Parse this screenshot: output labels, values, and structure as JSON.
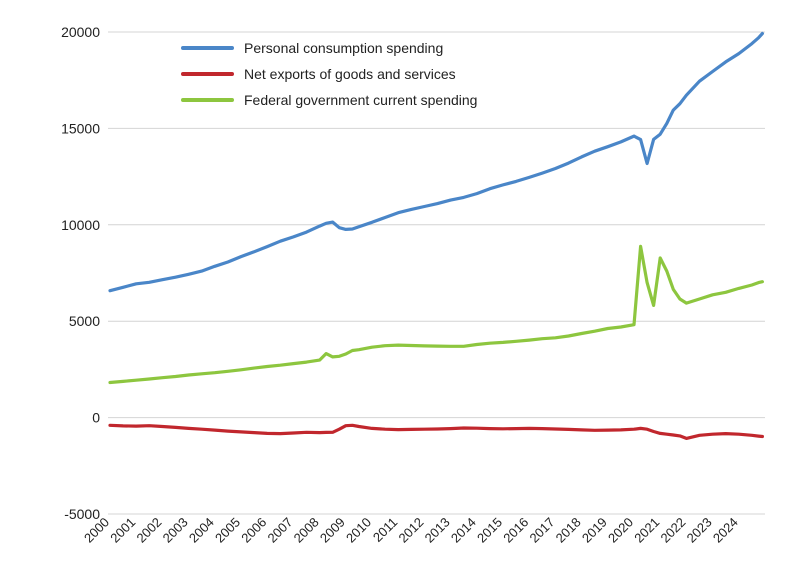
{
  "chart_data": {
    "type": "line",
    "title": "",
    "xlabel": "",
    "ylabel": "",
    "ylim": [
      -5000,
      20000
    ],
    "yticks": [
      "20000",
      "15000",
      "10000",
      "5000",
      "0",
      "-5000"
    ],
    "xticks": [
      "2000",
      "2001",
      "2002",
      "2003",
      "2004",
      "2005",
      "2006",
      "2007",
      "2008",
      "2009",
      "2010",
      "2011",
      "2012",
      "2013",
      "2014",
      "2015",
      "2016",
      "2017",
      "2018",
      "2019",
      "2020",
      "2021",
      "2022",
      "2023",
      "2024"
    ],
    "grid": true,
    "legend_position": "top-left",
    "series": [
      {
        "name": "Personal consumption spending",
        "color": "#4a86c8",
        "points": [
          [
            2000.0,
            6580
          ],
          [
            2000.5,
            6760
          ],
          [
            2001.0,
            6940
          ],
          [
            2001.5,
            7020
          ],
          [
            2002.0,
            7150
          ],
          [
            2002.5,
            7280
          ],
          [
            2003.0,
            7430
          ],
          [
            2003.5,
            7600
          ],
          [
            2004.0,
            7850
          ],
          [
            2004.5,
            8070
          ],
          [
            2005.0,
            8350
          ],
          [
            2005.5,
            8600
          ],
          [
            2006.0,
            8870
          ],
          [
            2006.5,
            9150
          ],
          [
            2007.0,
            9370
          ],
          [
            2007.5,
            9620
          ],
          [
            2008.0,
            9930
          ],
          [
            2008.25,
            10080
          ],
          [
            2008.5,
            10140
          ],
          [
            2008.75,
            9850
          ],
          [
            2009.0,
            9760
          ],
          [
            2009.25,
            9780
          ],
          [
            2009.5,
            9900
          ],
          [
            2010.0,
            10130
          ],
          [
            2010.5,
            10380
          ],
          [
            2011.0,
            10630
          ],
          [
            2011.5,
            10800
          ],
          [
            2012.0,
            10950
          ],
          [
            2012.5,
            11100
          ],
          [
            2013.0,
            11280
          ],
          [
            2013.5,
            11420
          ],
          [
            2014.0,
            11620
          ],
          [
            2014.5,
            11870
          ],
          [
            2015.0,
            12070
          ],
          [
            2015.5,
            12250
          ],
          [
            2016.0,
            12460
          ],
          [
            2016.5,
            12680
          ],
          [
            2017.0,
            12920
          ],
          [
            2017.5,
            13200
          ],
          [
            2018.0,
            13520
          ],
          [
            2018.5,
            13820
          ],
          [
            2019.0,
            14050
          ],
          [
            2019.5,
            14300
          ],
          [
            2020.0,
            14600
          ],
          [
            2020.25,
            14420
          ],
          [
            2020.5,
            13180
          ],
          [
            2020.75,
            14430
          ],
          [
            2021.0,
            14700
          ],
          [
            2021.25,
            15260
          ],
          [
            2021.5,
            15950
          ],
          [
            2021.75,
            16280
          ],
          [
            2022.0,
            16720
          ],
          [
            2022.5,
            17450
          ],
          [
            2023.0,
            17950
          ],
          [
            2023.5,
            18450
          ],
          [
            2024.0,
            18880
          ],
          [
            2024.5,
            19400
          ],
          [
            2024.75,
            19700
          ],
          [
            2024.9,
            19920
          ]
        ]
      },
      {
        "name": "Net exports of goods and services",
        "color": "#c1272d",
        "points": [
          [
            2000.0,
            -400
          ],
          [
            2000.5,
            -430
          ],
          [
            2001.0,
            -440
          ],
          [
            2001.5,
            -420
          ],
          [
            2002.0,
            -460
          ],
          [
            2002.5,
            -510
          ],
          [
            2003.0,
            -560
          ],
          [
            2003.5,
            -600
          ],
          [
            2004.0,
            -650
          ],
          [
            2004.5,
            -700
          ],
          [
            2005.0,
            -740
          ],
          [
            2005.5,
            -780
          ],
          [
            2006.0,
            -820
          ],
          [
            2006.5,
            -830
          ],
          [
            2007.0,
            -800
          ],
          [
            2007.5,
            -760
          ],
          [
            2008.0,
            -780
          ],
          [
            2008.25,
            -770
          ],
          [
            2008.5,
            -760
          ],
          [
            2008.75,
            -600
          ],
          [
            2009.0,
            -420
          ],
          [
            2009.25,
            -400
          ],
          [
            2009.5,
            -460
          ],
          [
            2010.0,
            -560
          ],
          [
            2010.5,
            -600
          ],
          [
            2011.0,
            -620
          ],
          [
            2011.5,
            -610
          ],
          [
            2012.0,
            -600
          ],
          [
            2012.5,
            -590
          ],
          [
            2013.0,
            -570
          ],
          [
            2013.5,
            -540
          ],
          [
            2014.0,
            -550
          ],
          [
            2014.5,
            -570
          ],
          [
            2015.0,
            -580
          ],
          [
            2015.5,
            -570
          ],
          [
            2016.0,
            -560
          ],
          [
            2016.5,
            -570
          ],
          [
            2017.0,
            -590
          ],
          [
            2017.5,
            -610
          ],
          [
            2018.0,
            -640
          ],
          [
            2018.5,
            -660
          ],
          [
            2019.0,
            -650
          ],
          [
            2019.5,
            -640
          ],
          [
            2020.0,
            -600
          ],
          [
            2020.25,
            -560
          ],
          [
            2020.5,
            -600
          ],
          [
            2020.75,
            -720
          ],
          [
            2021.0,
            -820
          ],
          [
            2021.25,
            -860
          ],
          [
            2021.5,
            -900
          ],
          [
            2021.75,
            -950
          ],
          [
            2022.0,
            -1080
          ],
          [
            2022.5,
            -920
          ],
          [
            2023.0,
            -860
          ],
          [
            2023.5,
            -830
          ],
          [
            2024.0,
            -860
          ],
          [
            2024.5,
            -920
          ],
          [
            2024.75,
            -960
          ],
          [
            2024.9,
            -980
          ]
        ]
      },
      {
        "name": "Federal government current spending",
        "color": "#8dc63f",
        "points": [
          [
            2000.0,
            1820
          ],
          [
            2000.5,
            1880
          ],
          [
            2001.0,
            1940
          ],
          [
            2001.5,
            2000
          ],
          [
            2002.0,
            2070
          ],
          [
            2002.5,
            2130
          ],
          [
            2003.0,
            2210
          ],
          [
            2003.5,
            2270
          ],
          [
            2004.0,
            2330
          ],
          [
            2004.5,
            2400
          ],
          [
            2005.0,
            2480
          ],
          [
            2005.5,
            2570
          ],
          [
            2006.0,
            2650
          ],
          [
            2006.5,
            2720
          ],
          [
            2007.0,
            2800
          ],
          [
            2007.5,
            2880
          ],
          [
            2008.0,
            2980
          ],
          [
            2008.25,
            3320
          ],
          [
            2008.5,
            3150
          ],
          [
            2008.75,
            3180
          ],
          [
            2009.0,
            3300
          ],
          [
            2009.25,
            3480
          ],
          [
            2009.5,
            3520
          ],
          [
            2010.0,
            3650
          ],
          [
            2010.5,
            3730
          ],
          [
            2011.0,
            3760
          ],
          [
            2011.5,
            3740
          ],
          [
            2012.0,
            3720
          ],
          [
            2012.5,
            3710
          ],
          [
            2013.0,
            3700
          ],
          [
            2013.5,
            3700
          ],
          [
            2014.0,
            3790
          ],
          [
            2014.5,
            3860
          ],
          [
            2015.0,
            3900
          ],
          [
            2015.5,
            3960
          ],
          [
            2016.0,
            4020
          ],
          [
            2016.5,
            4090
          ],
          [
            2017.0,
            4140
          ],
          [
            2017.5,
            4230
          ],
          [
            2018.0,
            4360
          ],
          [
            2018.5,
            4480
          ],
          [
            2019.0,
            4620
          ],
          [
            2019.5,
            4700
          ],
          [
            2020.0,
            4820
          ],
          [
            2020.25,
            8880
          ],
          [
            2020.5,
            7000
          ],
          [
            2020.75,
            5820
          ],
          [
            2021.0,
            8280
          ],
          [
            2021.25,
            7600
          ],
          [
            2021.5,
            6650
          ],
          [
            2021.75,
            6150
          ],
          [
            2022.0,
            5940
          ],
          [
            2022.5,
            6150
          ],
          [
            2023.0,
            6370
          ],
          [
            2023.5,
            6500
          ],
          [
            2024.0,
            6700
          ],
          [
            2024.5,
            6880
          ],
          [
            2024.75,
            7000
          ],
          [
            2024.9,
            7050
          ]
        ]
      }
    ]
  }
}
